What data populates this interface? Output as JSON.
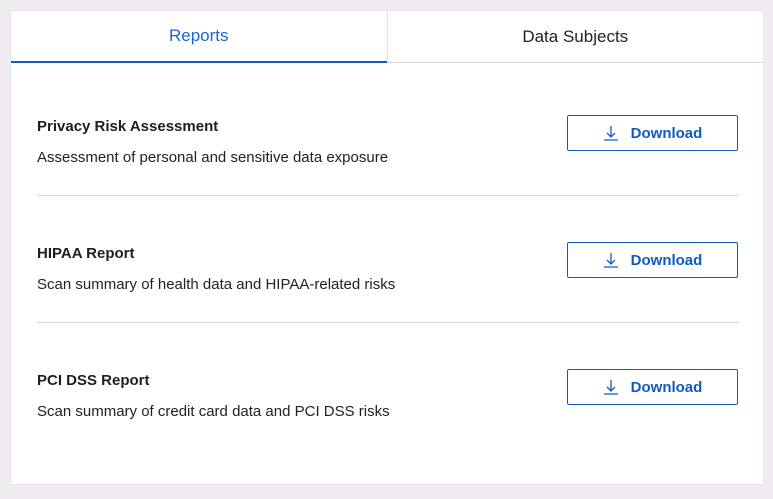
{
  "tabs": [
    {
      "label": "Reports",
      "active": true
    },
    {
      "label": "Data Subjects",
      "active": false
    }
  ],
  "accent": "#0f5cc0",
  "reports": [
    {
      "title": "Privacy Risk Assessment",
      "description": "Assessment of personal and sensitive data exposure",
      "button_label": "Download",
      "icon": "download-icon"
    },
    {
      "title": "HIPAA Report",
      "description": "Scan summary of health data and HIPAA-related risks",
      "button_label": "Download",
      "icon": "download-icon"
    },
    {
      "title": "PCI DSS Report",
      "description": "Scan summary of credit card data and PCI DSS risks",
      "button_label": "Download",
      "icon": "download-icon"
    }
  ]
}
